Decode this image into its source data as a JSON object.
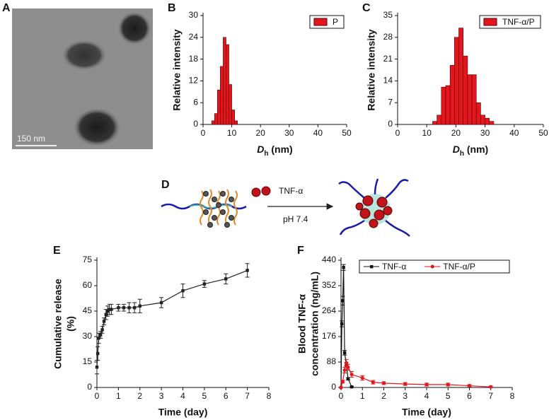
{
  "image": {
    "panel": "A",
    "scale_bar": "150 nm"
  },
  "diagram": {
    "panel": "D",
    "reagent": "TNF-α",
    "condition": "pH 7.4"
  },
  "chart_data": [
    {
      "type": "histogram",
      "panel": "B",
      "ylabel": [
        "Relative intensity"
      ],
      "xlabel": {
        "symbol": "D",
        "subscript": "h",
        "unit": "(nm)"
      },
      "xlim": [
        0,
        50
      ],
      "xticks": [
        0,
        10,
        20,
        30,
        40,
        50
      ],
      "ylim": [
        0,
        30
      ],
      "yticks": [
        0,
        6,
        12,
        18,
        24,
        30
      ],
      "bins": [
        3,
        4,
        5,
        6,
        7,
        8,
        9,
        10,
        11,
        12
      ],
      "series": [
        {
          "name": "P",
          "color": "#e3161e",
          "counts": [
            1,
            3,
            9.5,
            16,
            24,
            22,
            11,
            4,
            1
          ]
        }
      ],
      "legend": "upper right",
      "grid": false
    },
    {
      "type": "histogram",
      "panel": "C",
      "ylabel": [
        "Relative intensity"
      ],
      "xlabel": {
        "symbol": "D",
        "subscript": "h",
        "unit": "(nm)"
      },
      "xlim": [
        0,
        50
      ],
      "xticks": [
        0,
        10,
        20,
        30,
        40,
        50
      ],
      "ylim": [
        0,
        35
      ],
      "yticks": [
        0,
        7,
        14,
        21,
        28,
        35
      ],
      "bins": [
        12,
        13.5,
        15,
        16.5,
        18,
        19.5,
        21,
        22.5,
        24,
        25.5,
        27,
        28.5,
        30,
        31.5,
        33
      ],
      "series": [
        {
          "name": "TNF-α/P",
          "color": "#e3161e",
          "counts": [
            1,
            3,
            12,
            12.5,
            19,
            28,
            31,
            22,
            16,
            16,
            7,
            3,
            2,
            1
          ]
        }
      ],
      "legend": "upper right",
      "grid": false
    },
    {
      "type": "line",
      "panel": "E",
      "ylabel": [
        "Cumulative release",
        "(%)"
      ],
      "xlabel": "Time (day)",
      "xlim": [
        0,
        8
      ],
      "xticks": [
        0,
        1,
        2,
        3,
        4,
        5,
        6,
        7,
        8
      ],
      "ylim": [
        0,
        75
      ],
      "yticks": [
        0,
        15,
        30,
        45,
        60,
        75
      ],
      "series": [
        {
          "color": "#222222",
          "marker": "square",
          "x": [
            0,
            0.04,
            0.08,
            0.17,
            0.25,
            0.33,
            0.42,
            0.5,
            0.58,
            0.67,
            1,
            1.25,
            1.5,
            1.75,
            2,
            3,
            4,
            5,
            6,
            7
          ],
          "values": [
            12,
            20,
            29,
            31,
            34,
            39,
            43,
            45,
            46,
            46,
            47,
            47,
            47,
            47,
            48,
            50,
            57,
            61,
            64,
            69
          ],
          "errors": [
            4,
            4,
            3,
            2,
            2,
            2,
            3,
            3,
            3,
            3,
            2,
            2,
            3,
            3,
            4,
            3,
            4,
            2,
            3,
            4
          ]
        }
      ],
      "grid": false
    },
    {
      "type": "line",
      "panel": "F",
      "ylabel": [
        "Blood TNF-α",
        "concentration (ng/mL)"
      ],
      "xlabel": "Time (day)",
      "xlim": [
        0,
        8
      ],
      "xticks": [
        0,
        1,
        2,
        3,
        4,
        5,
        6,
        7,
        8
      ],
      "ylim": [
        0,
        440
      ],
      "yticks": [
        0,
        88,
        176,
        264,
        352,
        440
      ],
      "series": [
        {
          "name": "TNF-α",
          "color": "#111111",
          "marker": "square",
          "x": [
            0,
            0.04,
            0.08,
            0.12,
            0.17,
            0.25,
            0.33,
            0.5
          ],
          "values": [
            0,
            220,
            300,
            415,
            120,
            80,
            30,
            2
          ],
          "errors": [
            0,
            10,
            15,
            10,
            8,
            6,
            4,
            1
          ]
        },
        {
          "name": "TNF-α/P",
          "color": "#e3161e",
          "marker": "circle",
          "x": [
            0,
            0.08,
            0.17,
            0.25,
            0.33,
            0.5,
            1,
            1.5,
            2,
            3,
            4,
            5,
            6,
            7
          ],
          "values": [
            0,
            20,
            60,
            85,
            70,
            45,
            33,
            18,
            15,
            12,
            10,
            10,
            6,
            2
          ],
          "errors": [
            0,
            5,
            10,
            12,
            10,
            10,
            8,
            6,
            5,
            5,
            5,
            5,
            4,
            3
          ]
        }
      ],
      "legend": "upper right",
      "grid": false
    }
  ]
}
